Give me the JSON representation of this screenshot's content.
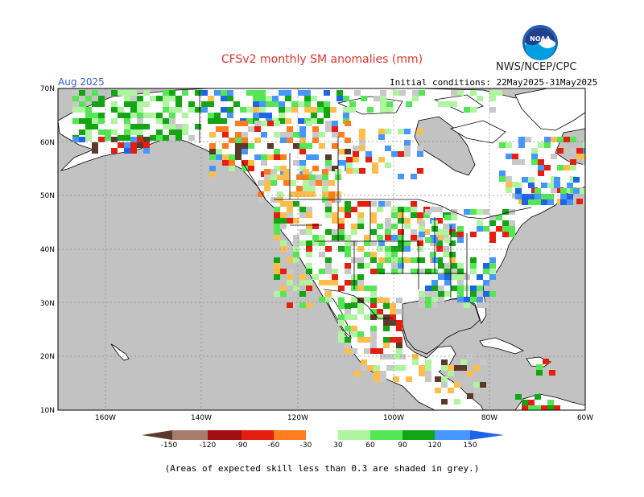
{
  "header": {
    "title": "CFSv2 monthly SM anomalies (mm)",
    "credit": "NWS/NCEP/CPC",
    "valid_month": "Aug 2025",
    "initial_conditions": "Initial conditions: 22May2025-31May2025",
    "logo_text": "NOAA"
  },
  "map": {
    "lat_labels": [
      "70N",
      "60N",
      "50N",
      "40N",
      "30N",
      "20N",
      "10N"
    ],
    "lon_labels": [
      "160W",
      "140W",
      "120W",
      "100W",
      "80W",
      "60W"
    ],
    "colors": {
      "ocean": "#c2c2c2",
      "land": "#ffffff",
      "low_skill": "#c8c8c8",
      "border": "#000000"
    }
  },
  "legend": {
    "tick_labels": [
      "-150",
      "-120",
      "-90",
      "-60",
      "-30",
      "30",
      "60",
      "90",
      "120",
      "150"
    ],
    "colors": [
      "#5a3a2a",
      "#a87c6a",
      "#a01010",
      "#e61e0f",
      "#ff7d1e",
      "#ffbe4a",
      "#ffffff",
      "#aff5a0",
      "#55e655",
      "#14a514",
      "#4696ff",
      "#1e64e6"
    ]
  },
  "footnote": "(Areas of expected skill less than 0.3 are shaded in grey.)"
}
